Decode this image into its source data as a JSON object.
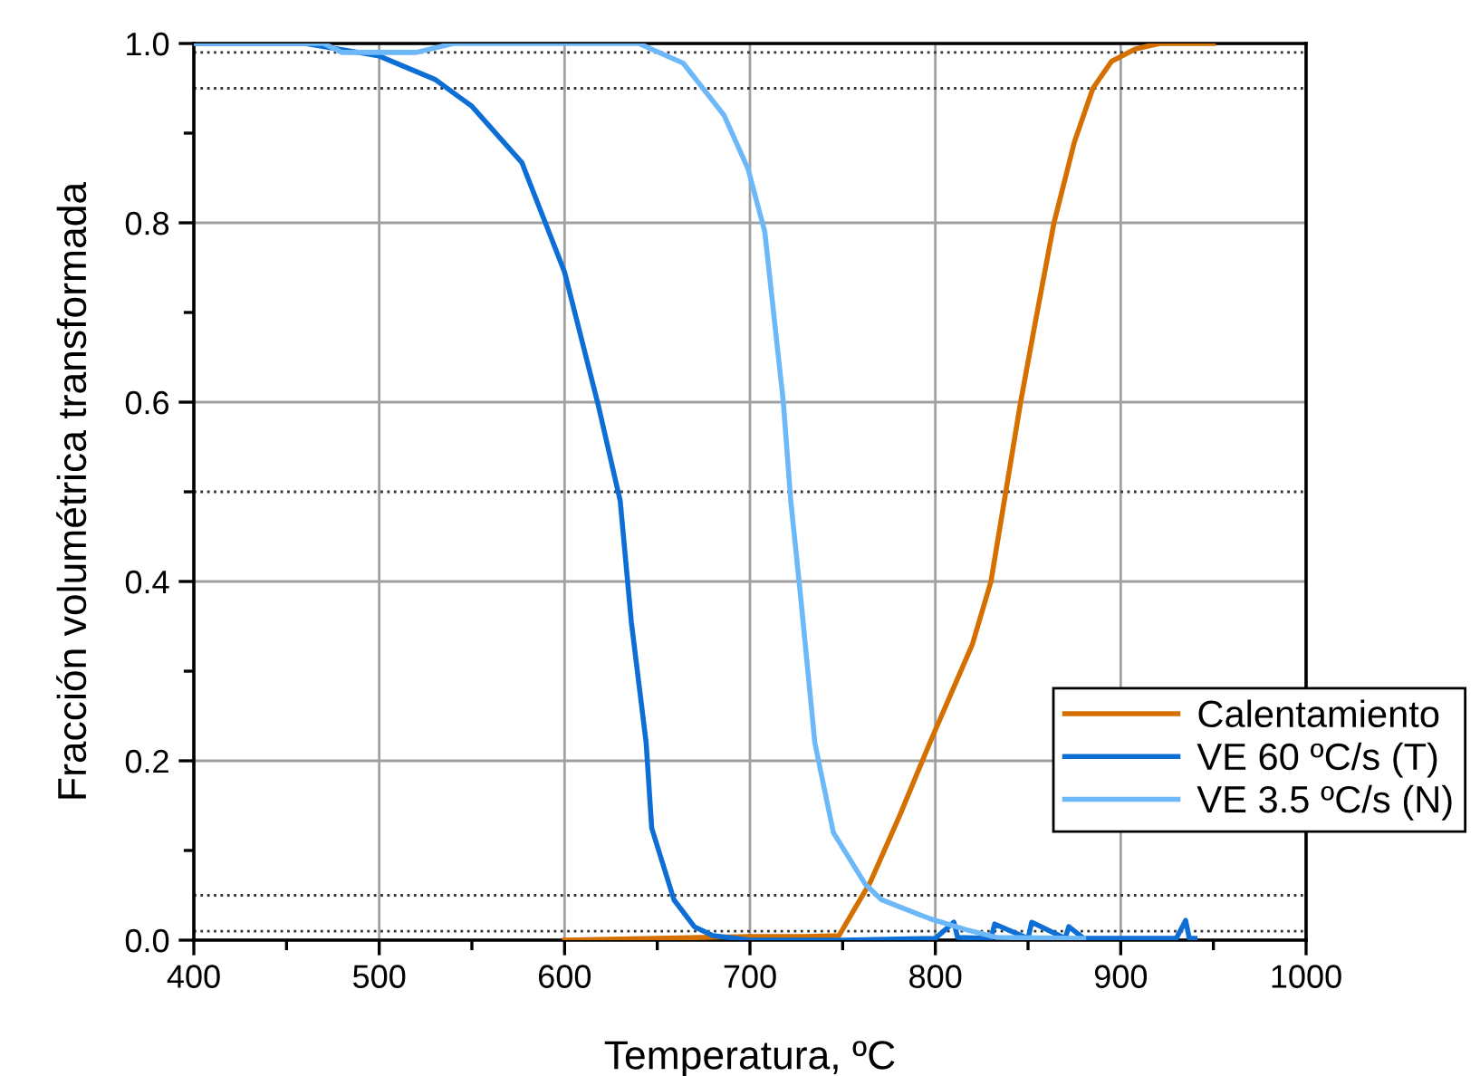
{
  "chart_data": {
    "type": "line",
    "xlabel": "Temperatura, ºC",
    "ylabel": "Fracción volumétrica transformada",
    "xlim": [
      400,
      1000
    ],
    "ylim": [
      0,
      1.0
    ],
    "xticks": [
      400,
      500,
      600,
      700,
      800,
      900,
      1000
    ],
    "yticks": [
      {
        "value": 0,
        "label": "0.0"
      },
      0.2,
      0.4,
      0.6,
      0.8,
      {
        "value": 1.0,
        "label": "1.0"
      }
    ],
    "grid": true,
    "legend": "bottom right",
    "line_style": "solid",
    "marker": "none",
    "ref_lines": [
      {
        "axis": "y",
        "value": 0.01,
        "line_style": "dotted",
        "color": "#333333"
      },
      {
        "axis": "y",
        "value": 0.05,
        "line_style": "dotted",
        "color": "#333333"
      },
      {
        "axis": "y",
        "value": 0.5,
        "line_style": "dotted",
        "color": "#333333"
      },
      {
        "axis": "y",
        "value": 0.95,
        "line_style": "dotted",
        "color": "#333333"
      },
      {
        "axis": "y",
        "value": 0.99,
        "line_style": "dotted",
        "color": "#333333"
      }
    ],
    "series": [
      {
        "name": "Calentamiento",
        "color": "#d46f00",
        "x": [
          600,
          650,
          700,
          730,
          748,
          765,
          781,
          797,
          820,
          830,
          838,
          846,
          854,
          864,
          875,
          885,
          895,
          908,
          921,
          950
        ],
        "values": [
          0,
          0.002,
          0.004,
          0.004,
          0.005,
          0.065,
          0.14,
          0.22,
          0.33,
          0.4,
          0.5,
          0.6,
          0.69,
          0.8,
          0.89,
          0.95,
          0.98,
          0.994,
          1.0,
          1.0
        ]
      },
      {
        "name": "VE 60 ºC/s (T)",
        "color": "#0d6fd6",
        "x": [
          400,
          460,
          500,
          530,
          550,
          577,
          600,
          618,
          630,
          636,
          644,
          647,
          659,
          670,
          680,
          700,
          750,
          800,
          810,
          812,
          830,
          832,
          850,
          852,
          870,
          872,
          880,
          930,
          935,
          937,
          940
        ],
        "values": [
          1.0,
          1.0,
          0.986,
          0.96,
          0.93,
          0.867,
          0.745,
          0.598,
          0.49,
          0.355,
          0.22,
          0.125,
          0.045,
          0.015,
          0.005,
          0.0,
          0.0,
          0.002,
          0.02,
          0.003,
          0.002,
          0.018,
          0.002,
          0.02,
          0.002,
          0.015,
          0.002,
          0.002,
          0.022,
          0.002,
          0.002
        ]
      },
      {
        "name": "VE 3.5 ºC/s (N)",
        "color": "#6cb8f8",
        "x": [
          400,
          470,
          480,
          500,
          520,
          540,
          560,
          600,
          640,
          664,
          686,
          699,
          708,
          718,
          722,
          727,
          735,
          745,
          762,
          771,
          797,
          816,
          833,
          880
        ],
        "values": [
          1.0,
          1.0,
          0.99,
          0.99,
          0.99,
          1.0,
          1.0,
          1.0,
          1.0,
          0.978,
          0.92,
          0.86,
          0.79,
          0.6,
          0.49,
          0.39,
          0.22,
          0.12,
          0.063,
          0.045,
          0.024,
          0.012,
          0.003,
          0.002
        ]
      }
    ]
  }
}
